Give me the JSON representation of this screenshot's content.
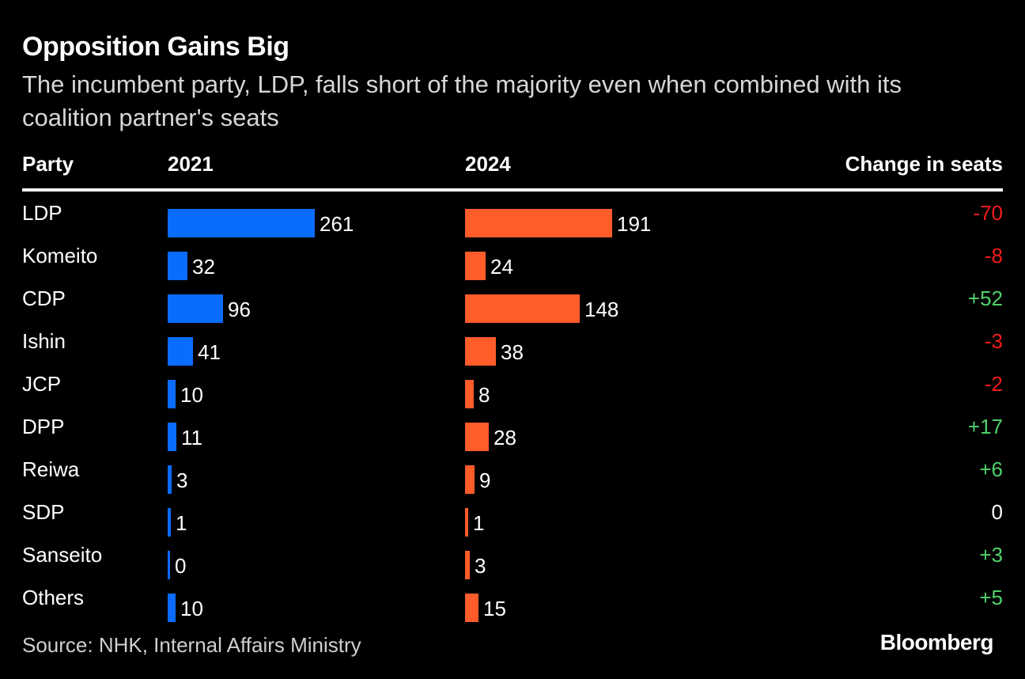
{
  "chart_data": {
    "type": "bar",
    "title": "Opposition Gains Big",
    "subtitle": "The incumbent party, LDP, falls short of the majority even when combined with its coalition partner's seats",
    "columns": {
      "party": "Party",
      "y2021": "2021",
      "y2024": "2024",
      "change": "Change in seats"
    },
    "categories": [
      "LDP",
      "Komeito",
      "CDP",
      "Ishin",
      "JCP",
      "DPP",
      "Reiwa",
      "SDP",
      "Sanseito",
      "Others"
    ],
    "series": [
      {
        "name": "2021",
        "color": "#0a6cff",
        "values": [
          261,
          32,
          96,
          41,
          10,
          11,
          3,
          1,
          0,
          10
        ]
      },
      {
        "name": "2024",
        "color": "#ff5c2a",
        "values": [
          191,
          24,
          148,
          38,
          8,
          28,
          9,
          1,
          3,
          15
        ]
      }
    ],
    "change": [
      "-70",
      "-8",
      "+52",
      "-3",
      "-2",
      "+17",
      "+6",
      "0",
      "+3",
      "+5"
    ],
    "change_colors": {
      "negative": "#f21b1b",
      "positive": "#4fd26a",
      "zero": "#ffffff"
    },
    "source": "Source: NHK, Internal Affairs Ministry",
    "brand": "Bloomberg"
  }
}
